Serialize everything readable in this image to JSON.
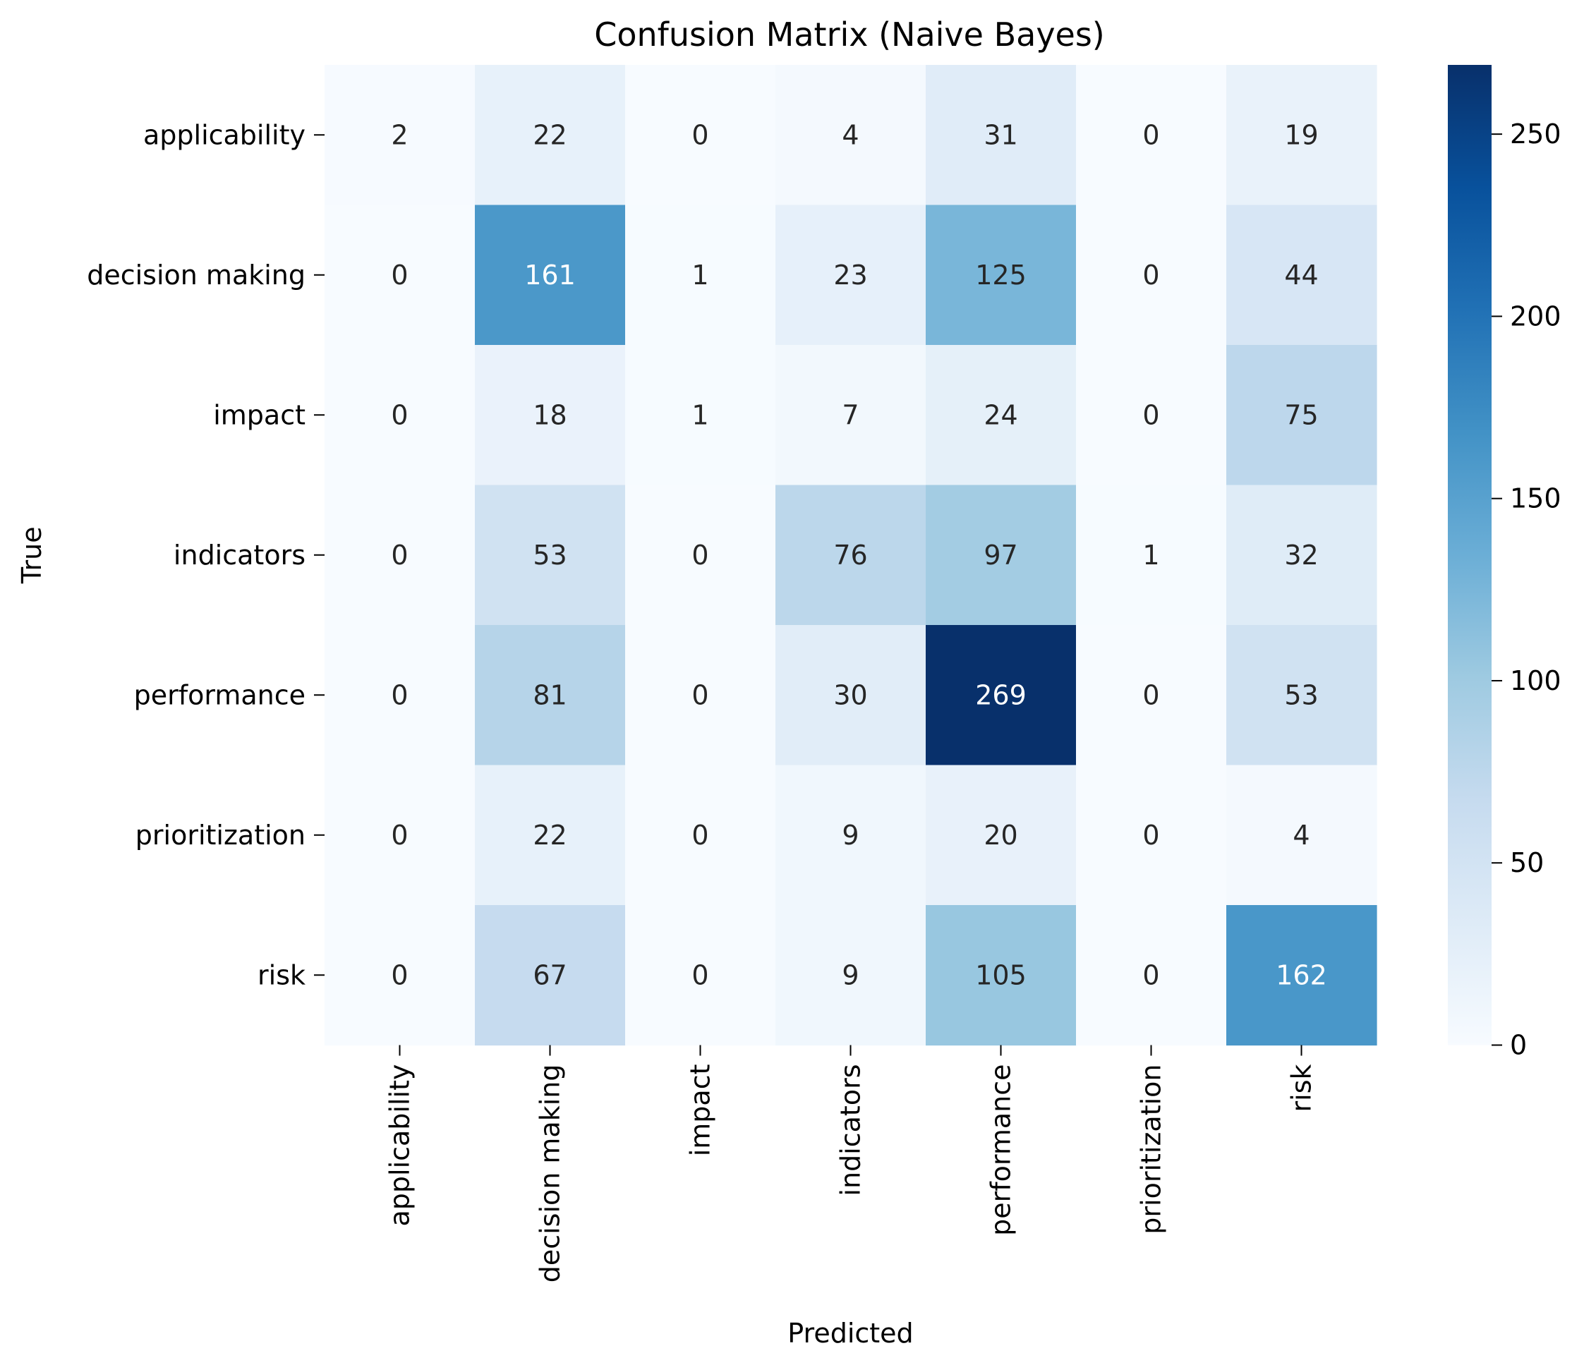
{
  "chart_data": {
    "type": "heatmap",
    "title": "Confusion Matrix (Naive Bayes)",
    "xlabel": "Predicted",
    "ylabel": "True",
    "x_categories": [
      "applicability",
      "decision making",
      "impact",
      "indicators",
      "performance",
      "prioritization",
      "risk"
    ],
    "y_categories": [
      "applicability",
      "decision making",
      "impact",
      "indicators",
      "performance",
      "prioritization",
      "risk"
    ],
    "values": [
      [
        2,
        22,
        0,
        4,
        31,
        0,
        19
      ],
      [
        0,
        161,
        1,
        23,
        125,
        0,
        44
      ],
      [
        0,
        18,
        1,
        7,
        24,
        0,
        75
      ],
      [
        0,
        53,
        0,
        76,
        97,
        1,
        32
      ],
      [
        0,
        81,
        0,
        30,
        269,
        0,
        53
      ],
      [
        0,
        22,
        0,
        9,
        20,
        0,
        4
      ],
      [
        0,
        67,
        0,
        9,
        105,
        0,
        162
      ]
    ],
    "colormap": "Blues",
    "vmin": 0,
    "vmax": 269,
    "colorbar_ticks": [
      0,
      50,
      100,
      150,
      200,
      250
    ],
    "annotations": true,
    "grid": false
  }
}
